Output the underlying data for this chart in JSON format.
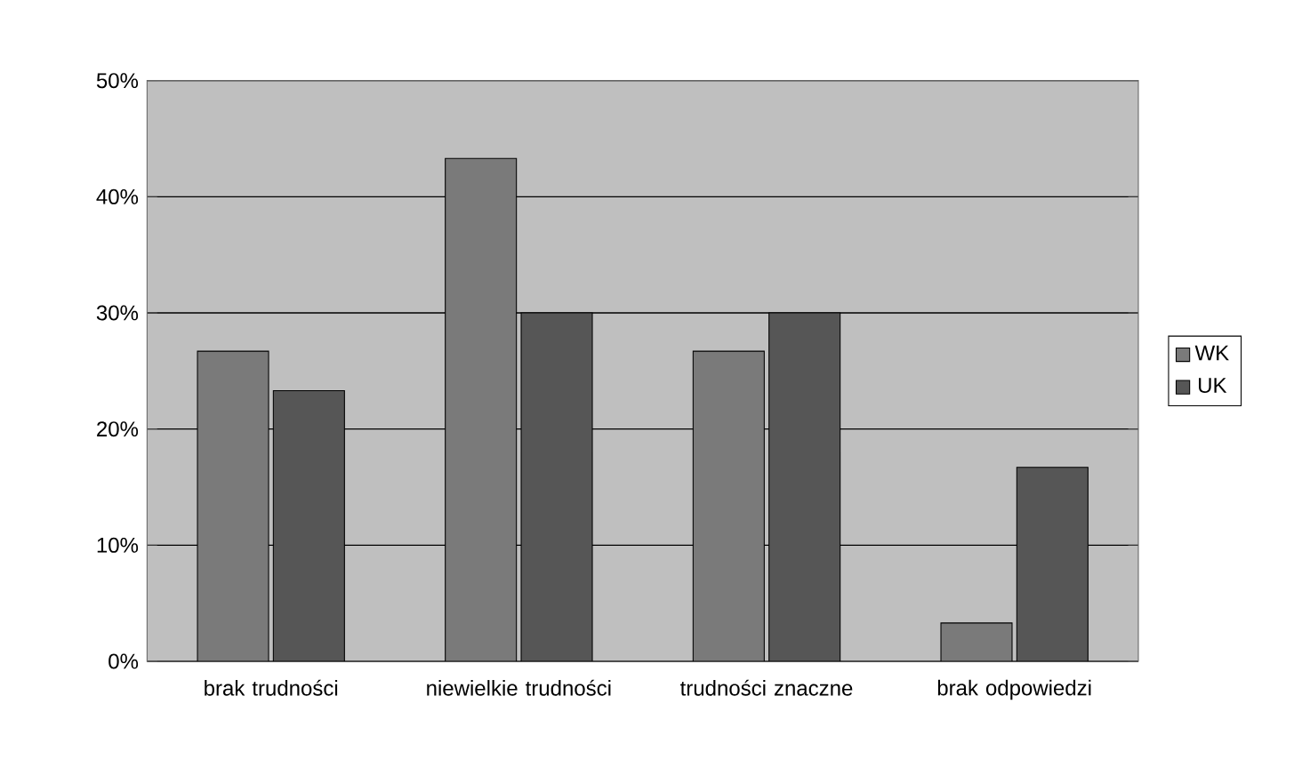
{
  "chart_data": {
    "type": "bar",
    "categories": [
      "brak trudności",
      "niewielkie trudności",
      "trudności znaczne",
      "brak odpowiedzi"
    ],
    "series": [
      {
        "name": "WK",
        "color": "#7a7a7a",
        "values": [
          26.7,
          43.3,
          26.7,
          3.3
        ]
      },
      {
        "name": "UK",
        "color": "#565656",
        "values": [
          23.3,
          30.0,
          30.0,
          16.7
        ]
      }
    ],
    "ylim": [
      0,
      50
    ],
    "yticks": [
      {
        "value": 0,
        "label": "0%"
      },
      {
        "value": 10,
        "label": "10%"
      },
      {
        "value": 20,
        "label": "20%"
      },
      {
        "value": 30,
        "label": "30%"
      },
      {
        "value": 40,
        "label": "40%"
      },
      {
        "value": 50,
        "label": "50%"
      }
    ],
    "grid": "y",
    "legend": "right"
  }
}
